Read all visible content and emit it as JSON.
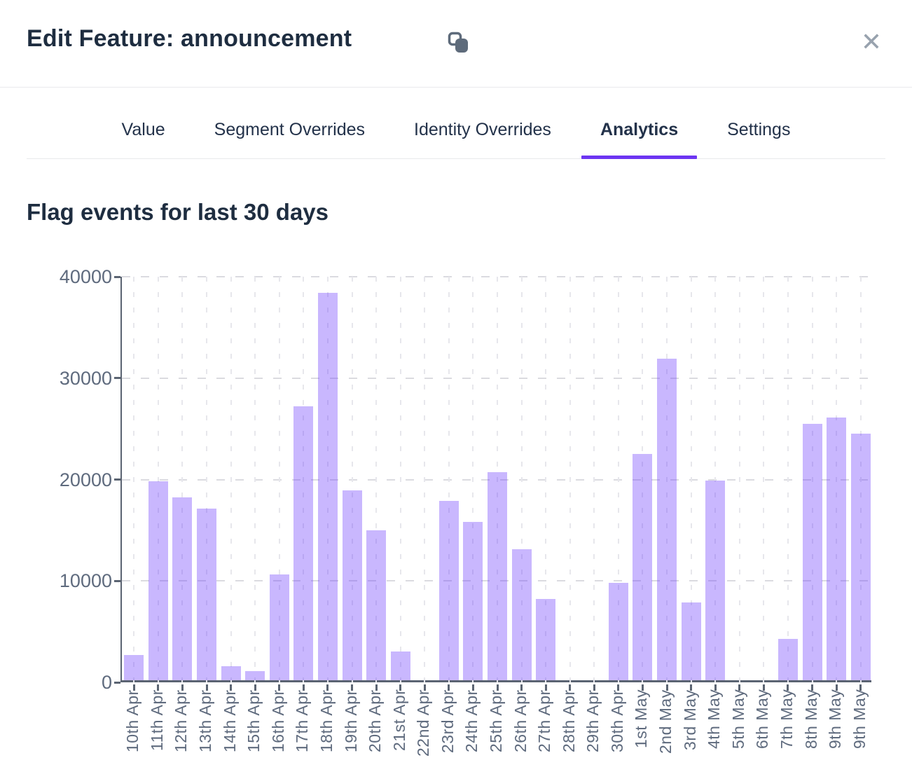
{
  "header": {
    "title": "Edit Feature: announcement",
    "close_label": "✕",
    "copy_icon": "copy-icon"
  },
  "tabs": {
    "items": [
      {
        "label": "Value",
        "active": false
      },
      {
        "label": "Segment Overrides",
        "active": false
      },
      {
        "label": "Identity Overrides",
        "active": false
      },
      {
        "label": "Analytics",
        "active": true
      },
      {
        "label": "Settings",
        "active": false
      }
    ]
  },
  "analytics": {
    "section_title": "Flag events for last 30 days"
  },
  "chart_data": {
    "type": "bar",
    "title": "Flag events for last 30 days",
    "categories": [
      "10th Apr",
      "11th Apr",
      "12th Apr",
      "13th Apr",
      "14th Apr",
      "15th Apr",
      "16th Apr",
      "17th Apr",
      "18th Apr",
      "19th Apr",
      "20th Apr",
      "21st Apr",
      "22nd Apr",
      "23rd Apr",
      "24th Apr",
      "25th Apr",
      "26th Apr",
      "27th Apr",
      "28th Apr",
      "29th Apr",
      "30th Apr",
      "1st May",
      "2nd May",
      "3rd May",
      "4th May",
      "5th May",
      "6th May",
      "7th May",
      "8th May",
      "9th May",
      "9th May"
    ],
    "values": [
      2500,
      19600,
      18000,
      16900,
      1400,
      900,
      10400,
      27000,
      38200,
      18700,
      14800,
      2800,
      0,
      17700,
      15600,
      20500,
      12900,
      8000,
      0,
      0,
      9600,
      22300,
      31700,
      7700,
      19700,
      0,
      0,
      4100,
      25300,
      25900,
      24300
    ],
    "xlabel": "",
    "ylabel": "",
    "ylim": [
      0,
      40000
    ],
    "yticks": [
      0,
      10000,
      20000,
      30000,
      40000
    ],
    "grid": true,
    "legend": "none",
    "bar_color": "#c7b8fa",
    "accent_color": "#6d35f2",
    "axis_color": "#5b6472",
    "tick_label_color": "#5f6b7e"
  }
}
